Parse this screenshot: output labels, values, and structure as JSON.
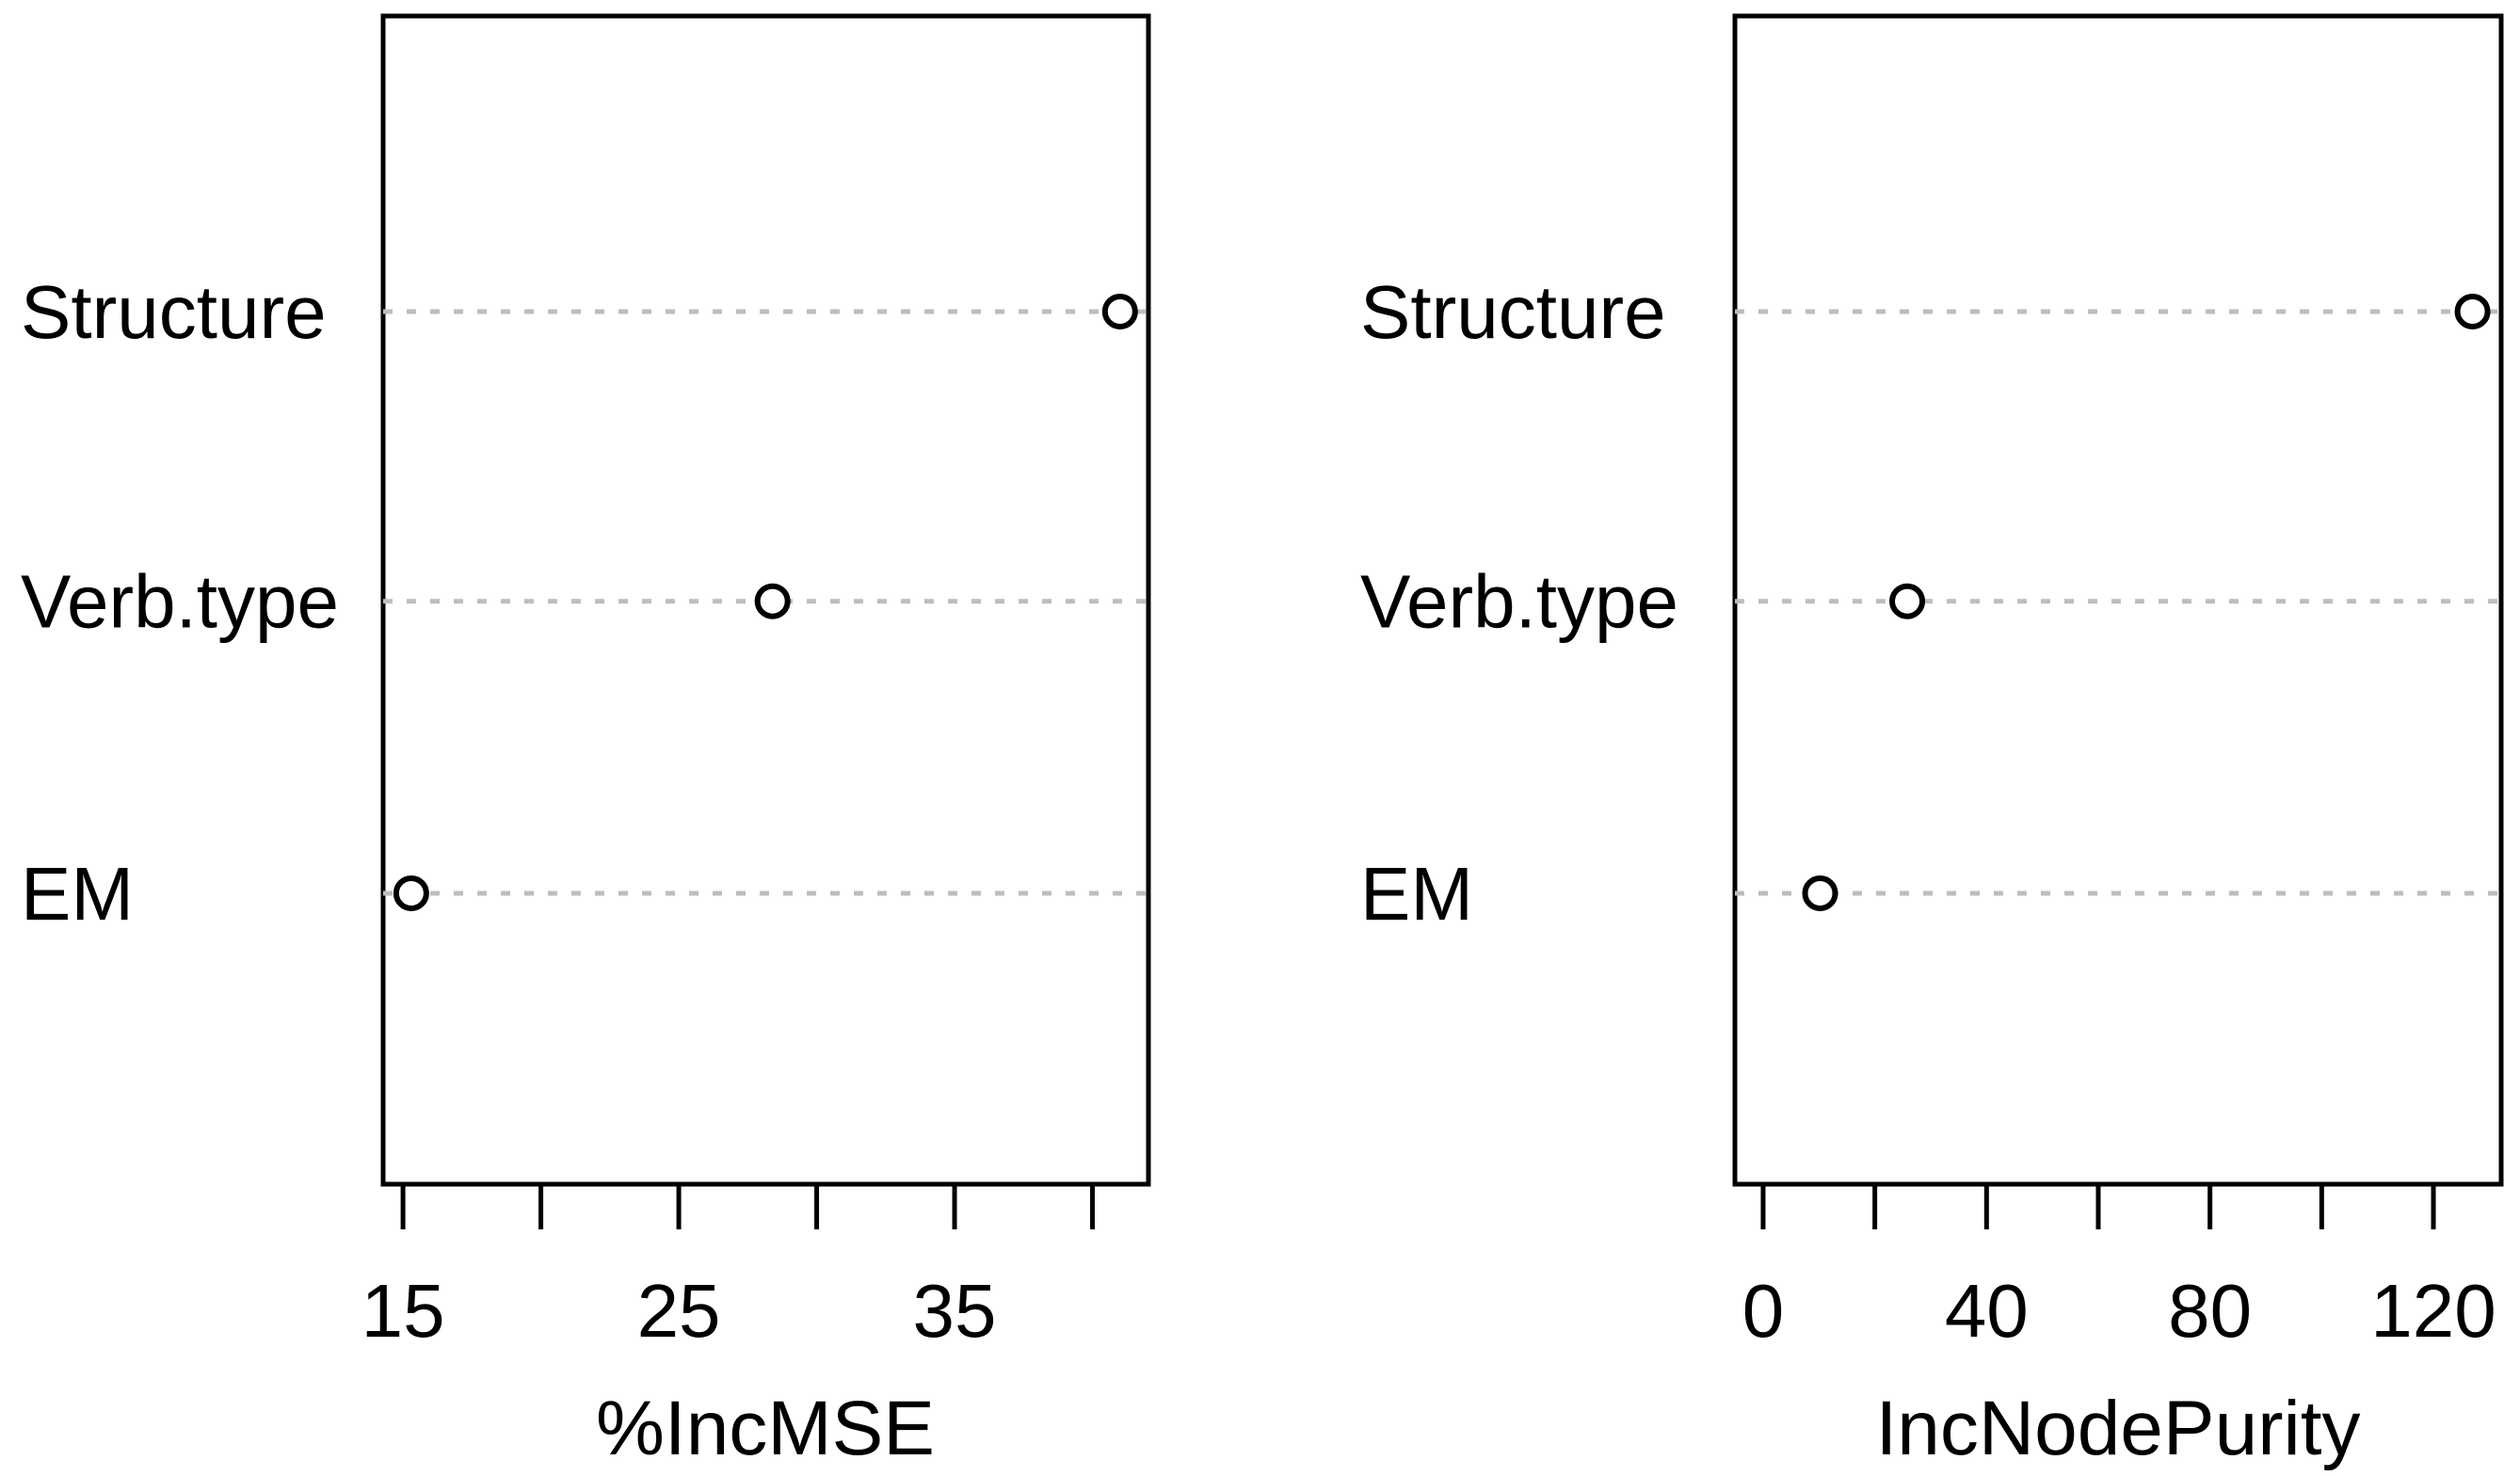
{
  "figure": {
    "background": "#ffffff",
    "line_color": "#000000",
    "grid_color": "#bdbdbd",
    "point_fill": "#ffffff",
    "point_stroke": "#000000"
  },
  "chart_data": [
    {
      "type": "scatter",
      "variant": "dotchart",
      "title": "",
      "xlabel": "%IncMSE",
      "ylabel": "",
      "categories": [
        "Structure",
        "Verb.type",
        "EM"
      ],
      "values": [
        41.0,
        28.4,
        15.3
      ],
      "xticks": [
        15,
        20,
        25,
        30,
        35,
        40
      ],
      "xtick_labels": [
        "15",
        "",
        "25",
        "",
        "35",
        ""
      ],
      "xlim": [
        14.28,
        42.03
      ],
      "grid": "horizontal-dotted",
      "legend": "none"
    },
    {
      "type": "scatter",
      "variant": "dotchart",
      "title": "",
      "xlabel": "IncNodePurity",
      "ylabel": "",
      "categories": [
        "Structure",
        "Verb.type",
        "EM"
      ],
      "values": [
        127.0,
        25.8,
        10.2
      ],
      "xticks": [
        0,
        20,
        40,
        60,
        80,
        100,
        120
      ],
      "xtick_labels": [
        "0",
        "",
        "40",
        "",
        "80",
        "",
        "120"
      ],
      "xlim": [
        -5.05,
        132.13
      ],
      "grid": "horizontal-dotted",
      "legend": "none"
    }
  ]
}
